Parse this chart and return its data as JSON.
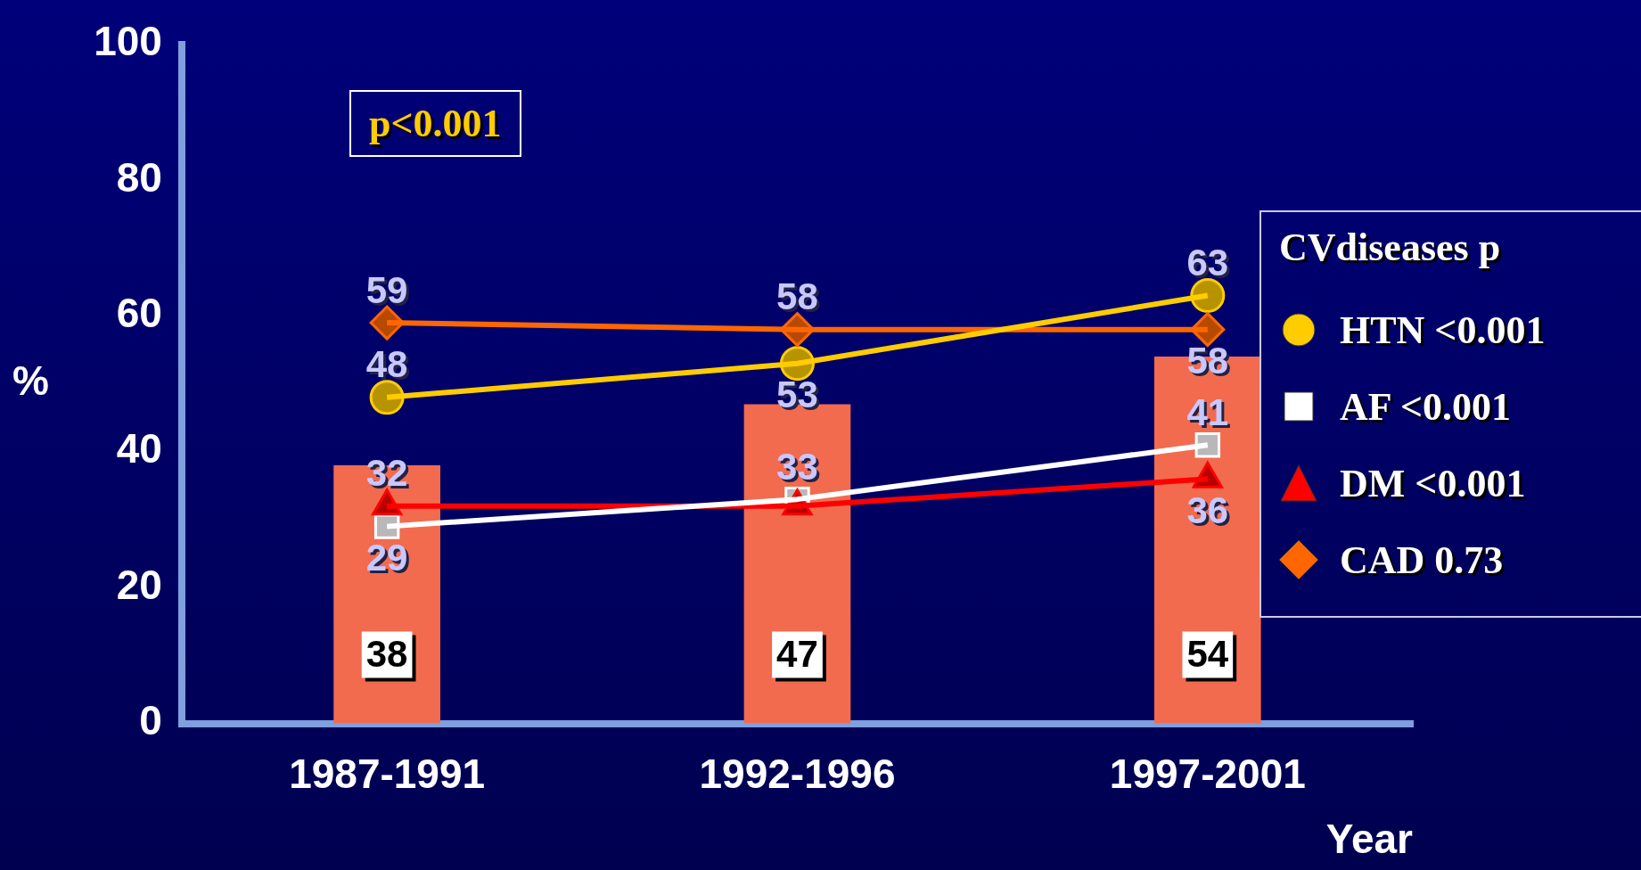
{
  "chart_data": {
    "type": "bar",
    "categories": [
      "1987-1991",
      "1992-1996",
      "1997-2001"
    ],
    "ylabel": "%",
    "xlabel": "Year",
    "legend_title": "CVdiseases p",
    "legend": "right",
    "ylim": [
      0,
      100
    ],
    "yticks": [
      0,
      20,
      40,
      60,
      80,
      100
    ],
    "grid": false,
    "annotations": [
      "p<0.001"
    ],
    "series": [
      {
        "color": "#f26b4f",
        "values": [
          38,
          47,
          54
        ],
        "value_labels": [
          "38",
          "47",
          "54"
        ]
      },
      {
        "type": "line",
        "name": "HTN <0.001",
        "color": "#ffcc00",
        "marker": "circle",
        "values": [
          48,
          53,
          63
        ],
        "value_labels": [
          "48",
          "53",
          "63"
        ]
      },
      {
        "type": "line",
        "name": "AF <0.001",
        "color": "#ffffff",
        "marker": "square",
        "values": [
          29,
          33,
          41
        ],
        "value_labels": [
          "29",
          "33",
          "41"
        ]
      },
      {
        "type": "line",
        "name": "DM <0.001",
        "color": "#ff0000",
        "marker": "triangle",
        "values": [
          32,
          32,
          36
        ],
        "value_labels": [
          "32",
          null,
          "36"
        ]
      },
      {
        "type": "line",
        "name": "CAD 0.73",
        "color": "#ff6600",
        "marker": "diamond",
        "values": [
          59,
          58,
          58
        ],
        "value_labels": [
          "59",
          "58",
          "58"
        ]
      }
    ]
  }
}
